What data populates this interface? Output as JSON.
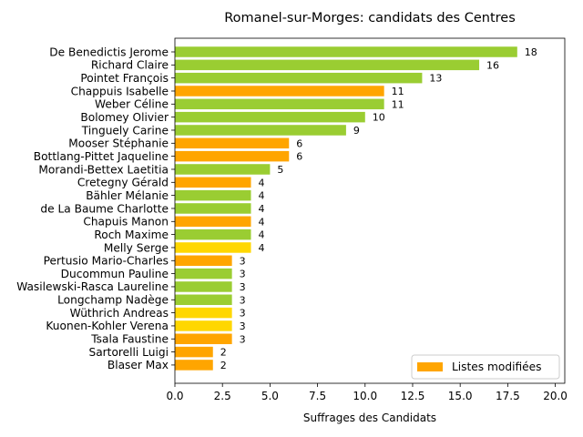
{
  "chart_data": {
    "type": "bar",
    "orientation": "horizontal",
    "title": "Romanel-sur-Morges: candidats des Centres",
    "xlabel": "Suffrages des Candidats",
    "ylabel": "",
    "xlim": [
      0,
      20.5
    ],
    "x_ticks": [
      0.0,
      2.5,
      5.0,
      7.5,
      10.0,
      12.5,
      15.0,
      17.5,
      20.0
    ],
    "x_tick_labels": [
      "0.0",
      "2.5",
      "5.0",
      "7.5",
      "10.0",
      "12.5",
      "15.0",
      "17.5",
      "20.0"
    ],
    "grid": false,
    "legend": {
      "position": "lower-right",
      "entries": [
        {
          "label": "Listes modifiées",
          "color": "#ffa500"
        }
      ]
    },
    "categories": [
      "De Benedictis Jerome",
      "Richard Claire",
      "Pointet François",
      "Chappuis Isabelle",
      "Weber Céline",
      "Bolomey Olivier",
      "Tinguely Carine",
      "Mooser Stéphanie",
      "Bottlang-Pittet Jaqueline",
      "Morandi-Bettex Laetitia",
      "Cretegny Gérald",
      "Bähler Mélanie",
      "de La Baume Charlotte",
      "Chapuis Manon",
      "Roch Maxime",
      "Melly Serge",
      "Pertusio Mario-Charles",
      "Ducommun Pauline",
      "Wasilewski-Rasca Laureline",
      "Longchamp Nadège",
      "Wüthrich Andreas",
      "Kuonen-Kohler Verena",
      "Tsala Faustine",
      "Sartorelli Luigi",
      "Blaser Max"
    ],
    "values": [
      18,
      16,
      13,
      11,
      11,
      10,
      9,
      6,
      6,
      5,
      4,
      4,
      4,
      4,
      4,
      4,
      3,
      3,
      3,
      3,
      3,
      3,
      3,
      2,
      2
    ],
    "value_labels": [
      "18",
      "16",
      "13",
      "11",
      "11",
      "10",
      "9",
      "6",
      "6",
      "5",
      "4",
      "4",
      "4",
      "4",
      "4",
      "4",
      "3",
      "3",
      "3",
      "3",
      "3",
      "3",
      "3",
      "2",
      "2"
    ],
    "colors": [
      "#9acd32",
      "#9acd32",
      "#9acd32",
      "#ffa500",
      "#9acd32",
      "#9acd32",
      "#9acd32",
      "#ffa500",
      "#ffa500",
      "#9acd32",
      "#ffa500",
      "#9acd32",
      "#9acd32",
      "#ffa500",
      "#9acd32",
      "#ffd700",
      "#ffa500",
      "#9acd32",
      "#9acd32",
      "#9acd32",
      "#ffd700",
      "#ffd700",
      "#ffa500",
      "#ffa500",
      "#ffa500"
    ]
  }
}
